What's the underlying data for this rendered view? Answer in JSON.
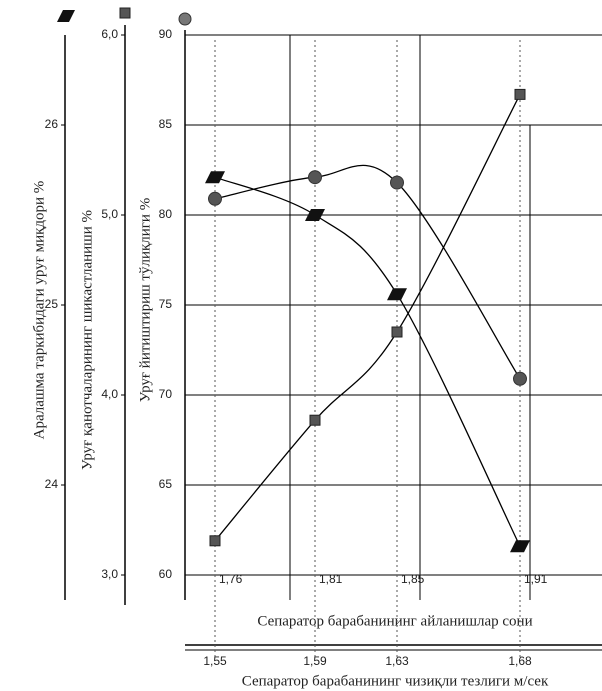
{
  "chart_data": {
    "type": "line",
    "categories": [
      "1,55",
      "1,59",
      "1,63",
      "1,68"
    ],
    "secondary_categories": [
      "1,76",
      "1,81",
      "1,85",
      "1,91"
    ],
    "xlabel": "Сепаратор барабанининг чизиқли тезлиги м/сек",
    "x2label": "Сепаратор барабанининг айланишлар сони",
    "ylabel": "Уруғ йитиштириш тўлиқлиги %",
    "ylim": [
      60,
      90
    ],
    "yticks": [
      60,
      65,
      70,
      75,
      80,
      85,
      90
    ],
    "y2label": "Уруғ қанотчаларининг шикастланиши %",
    "y2lim": [
      3,
      6
    ],
    "y2ticks": [
      {
        "value": 3,
        "label": "3,0"
      },
      {
        "value": 4,
        "label": "4,0"
      },
      {
        "value": 5,
        "label": "5,0"
      },
      {
        "value": 6,
        "label": "6,0"
      }
    ],
    "y3label": "Аралашма таркибидаги уруғ миқдори %",
    "y3lim": [
      23.5,
      26.5
    ],
    "y3ticks": [
      24,
      25,
      26
    ],
    "grid": true,
    "series": [
      {
        "marker": "circle",
        "color": "#555555",
        "axis": "y",
        "values": [
          80.9,
          82.1,
          81.8,
          70.9
        ]
      },
      {
        "marker": "square",
        "color": "#555555",
        "axis": "y2",
        "values": [
          3.19,
          3.86,
          4.35,
          5.67
        ]
      },
      {
        "marker": "parallelogram",
        "color": "#111111",
        "axis": "y3",
        "values": [
          25.71,
          25.5,
          25.06,
          23.66
        ]
      }
    ]
  }
}
